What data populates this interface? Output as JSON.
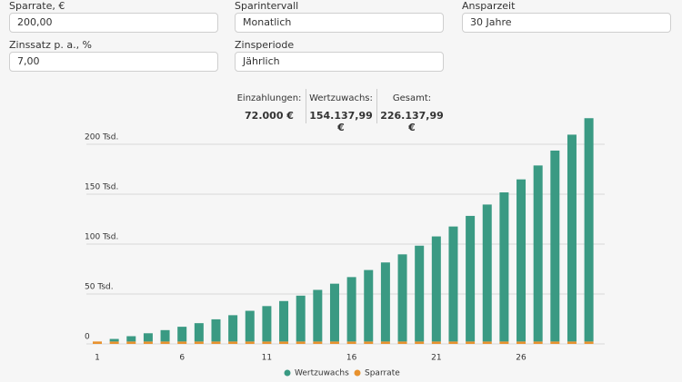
{
  "form": {
    "fields": [
      {
        "label": "Sparrate, €",
        "value": "200,00"
      },
      {
        "label": "Sparintervall",
        "value": "Monatlich"
      },
      {
        "label": "Ansparzeit",
        "value": "30 Jahre"
      },
      {
        "label": "Zinssatz p. a., %",
        "value": "7,00"
      },
      {
        "label": "Zinsperiode",
        "value": "Jährlich"
      }
    ]
  },
  "summary": [
    {
      "label": "Einzahlungen:",
      "value": "72.000 €"
    },
    {
      "label": "Wertzuwachs:",
      "value": "154.137,99 €"
    },
    {
      "label": "Gesamt:",
      "value": "226.137,99 €"
    }
  ],
  "chart_data": {
    "type": "bar",
    "stacked": true,
    "grid": true,
    "legend": "bottom",
    "categories": [
      "1",
      null,
      null,
      null,
      null,
      "6",
      null,
      null,
      null,
      null,
      "11",
      null,
      null,
      null,
      null,
      "16",
      null,
      null,
      null,
      null,
      "21",
      null,
      null,
      null,
      null,
      "26",
      null,
      null,
      null,
      null
    ],
    "series": [
      {
        "name": "Wertzuwachs",
        "color": "#3a9a83",
        "values": [
          0,
          2568,
          5316,
          8256,
          11402,
          14768,
          18370,
          22224,
          26347,
          30759,
          35481,
          40532,
          45937,
          51721,
          57910,
          64531,
          71616,
          79198,
          87310,
          95989,
          105276,
          115214,
          125847,
          137224,
          149398,
          162424,
          176361,
          191274,
          207232,
          223738
        ]
      },
      {
        "name": "Sparrate",
        "color": "#e8922e",
        "values": [
          2400,
          2400,
          2400,
          2400,
          2400,
          2400,
          2400,
          2400,
          2400,
          2400,
          2400,
          2400,
          2400,
          2400,
          2400,
          2400,
          2400,
          2400,
          2400,
          2400,
          2400,
          2400,
          2400,
          2400,
          2400,
          2400,
          2400,
          2400,
          2400,
          2400
        ]
      }
    ],
    "ylim": [
      0,
      230000
    ],
    "yticks": [
      0,
      {
        "value": 50000,
        "label": "50 Tsd."
      },
      {
        "value": 100000,
        "label": "100 Tsd."
      },
      {
        "value": 150000,
        "label": "150 Tsd."
      },
      {
        "value": 200000,
        "label": "200 Tsd."
      }
    ]
  }
}
